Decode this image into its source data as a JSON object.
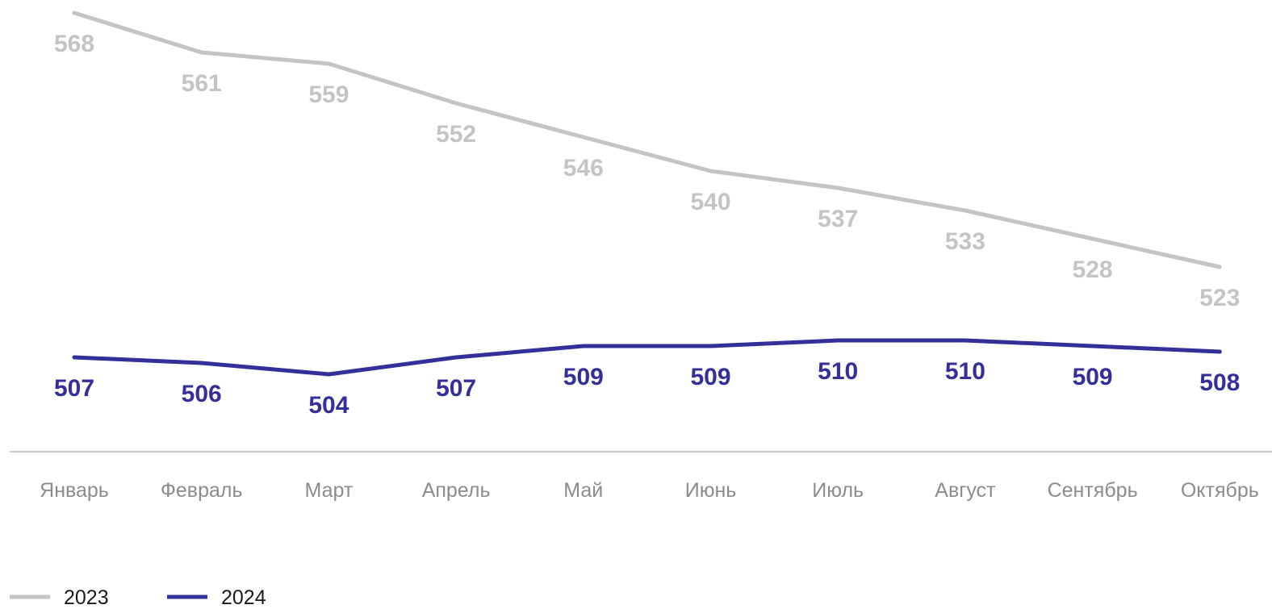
{
  "chart_data": {
    "type": "line",
    "title": "",
    "xlabel": "",
    "ylabel": "",
    "categories": [
      "Январь",
      "Февраль",
      "Март",
      "Апрель",
      "Май",
      "Июнь",
      "Июль",
      "Август",
      "Сентябрь",
      "Октябрь"
    ],
    "series": [
      {
        "name": "2023",
        "color": "#c4c4c4",
        "values": [
          568,
          561,
          559,
          552,
          546,
          540,
          537,
          533,
          528,
          523
        ],
        "label_position": "below"
      },
      {
        "name": "2024",
        "color": "#33309a",
        "values": [
          507,
          506,
          504,
          507,
          509,
          509,
          510,
          510,
          509,
          508
        ],
        "label_position": "below"
      }
    ],
    "grid": false,
    "legend": "bottom-left"
  }
}
